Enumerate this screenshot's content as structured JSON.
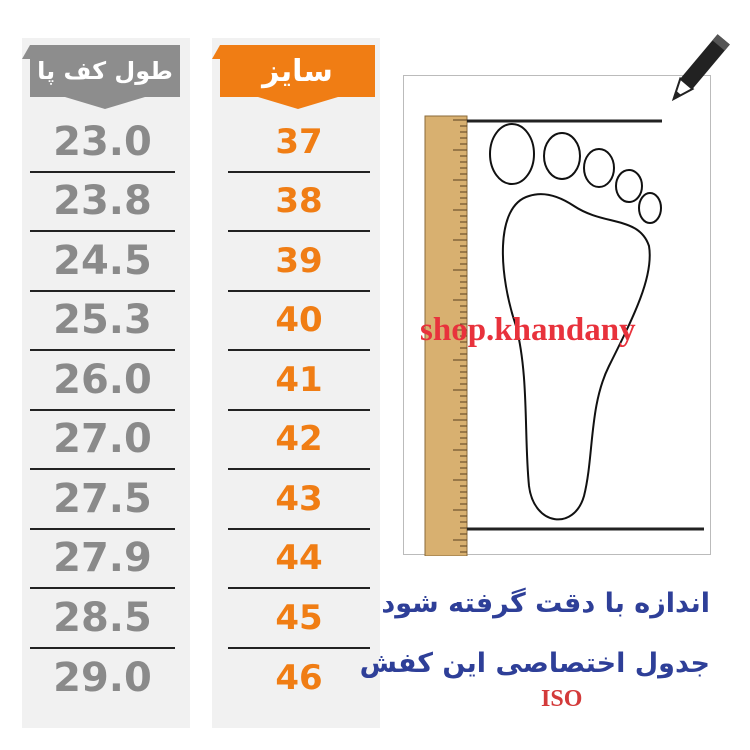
{
  "headers": {
    "foot_length": "طول کف پا",
    "size": "سایز"
  },
  "rows": [
    {
      "length": "23.0",
      "size": "37"
    },
    {
      "length": "23.8",
      "size": "38"
    },
    {
      "length": "24.5",
      "size": "39"
    },
    {
      "length": "25.3",
      "size": "40"
    },
    {
      "length": "26.0",
      "size": "41"
    },
    {
      "length": "27.0",
      "size": "42"
    },
    {
      "length": "27.5",
      "size": "43"
    },
    {
      "length": "27.9",
      "size": "44"
    },
    {
      "length": "28.5",
      "size": "45"
    },
    {
      "length": "29.0",
      "size": "46"
    }
  ],
  "watermark": "shop.khandany",
  "notes": {
    "line1": "اندازه با دقت گرفته شود",
    "line2": "جدول اختصاصی این کفش",
    "standard": "ISO"
  },
  "colors": {
    "size_accent": "#f07d14",
    "length_gray": "#8d8d8d",
    "note_blue": "#2e3f98",
    "watermark_red": "#e8323c"
  },
  "icons": [
    "pencil-icon",
    "ruler-icon",
    "footprint-outline"
  ]
}
